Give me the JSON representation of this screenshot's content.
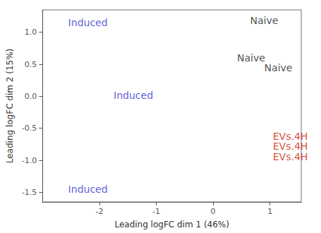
{
  "chart_data": {
    "type": "scatter",
    "points": [
      {
        "label": "Induced",
        "x": -2.55,
        "y": 1.15,
        "color": "#3333CC"
      },
      {
        "label": "Induced",
        "x": -1.75,
        "y": 0.02,
        "color": "#3333CC"
      },
      {
        "label": "Induced",
        "x": -2.55,
        "y": -1.45,
        "color": "#3333CC"
      },
      {
        "label": "Naive",
        "x": 0.65,
        "y": 1.18,
        "color": "#222222"
      },
      {
        "label": "Naive",
        "x": 0.42,
        "y": 0.6,
        "color": "#222222"
      },
      {
        "label": "Naive",
        "x": 0.9,
        "y": 0.45,
        "color": "#222222"
      },
      {
        "label": "EVs.4H",
        "x": 1.05,
        "y": -0.62,
        "color": "#CC2200"
      },
      {
        "label": "EVs.4H",
        "x": 1.05,
        "y": -0.78,
        "color": "#CC2200"
      },
      {
        "label": "EVs.4H",
        "x": 1.05,
        "y": -0.94,
        "color": "#CC2200"
      }
    ],
    "xlabel": "Leading logFC dim 1 (46%)",
    "ylabel": "Leading logFC dim 2 (15%)",
    "xlim": [
      -3.0,
      1.55
    ],
    "ylim": [
      -1.65,
      1.35
    ],
    "xticks": [
      -2,
      -1,
      0,
      1
    ],
    "yticks": [
      {
        "value": -1.5,
        "label": "-1.5"
      },
      {
        "value": -1.0,
        "label": "-1.0"
      },
      {
        "value": -0.5,
        "label": "-0.5"
      },
      {
        "value": 0.0,
        "label": "0.0"
      },
      {
        "value": 0.5,
        "label": "0.5"
      },
      {
        "value": 1.0,
        "label": "1.0"
      }
    ],
    "grid": false
  }
}
